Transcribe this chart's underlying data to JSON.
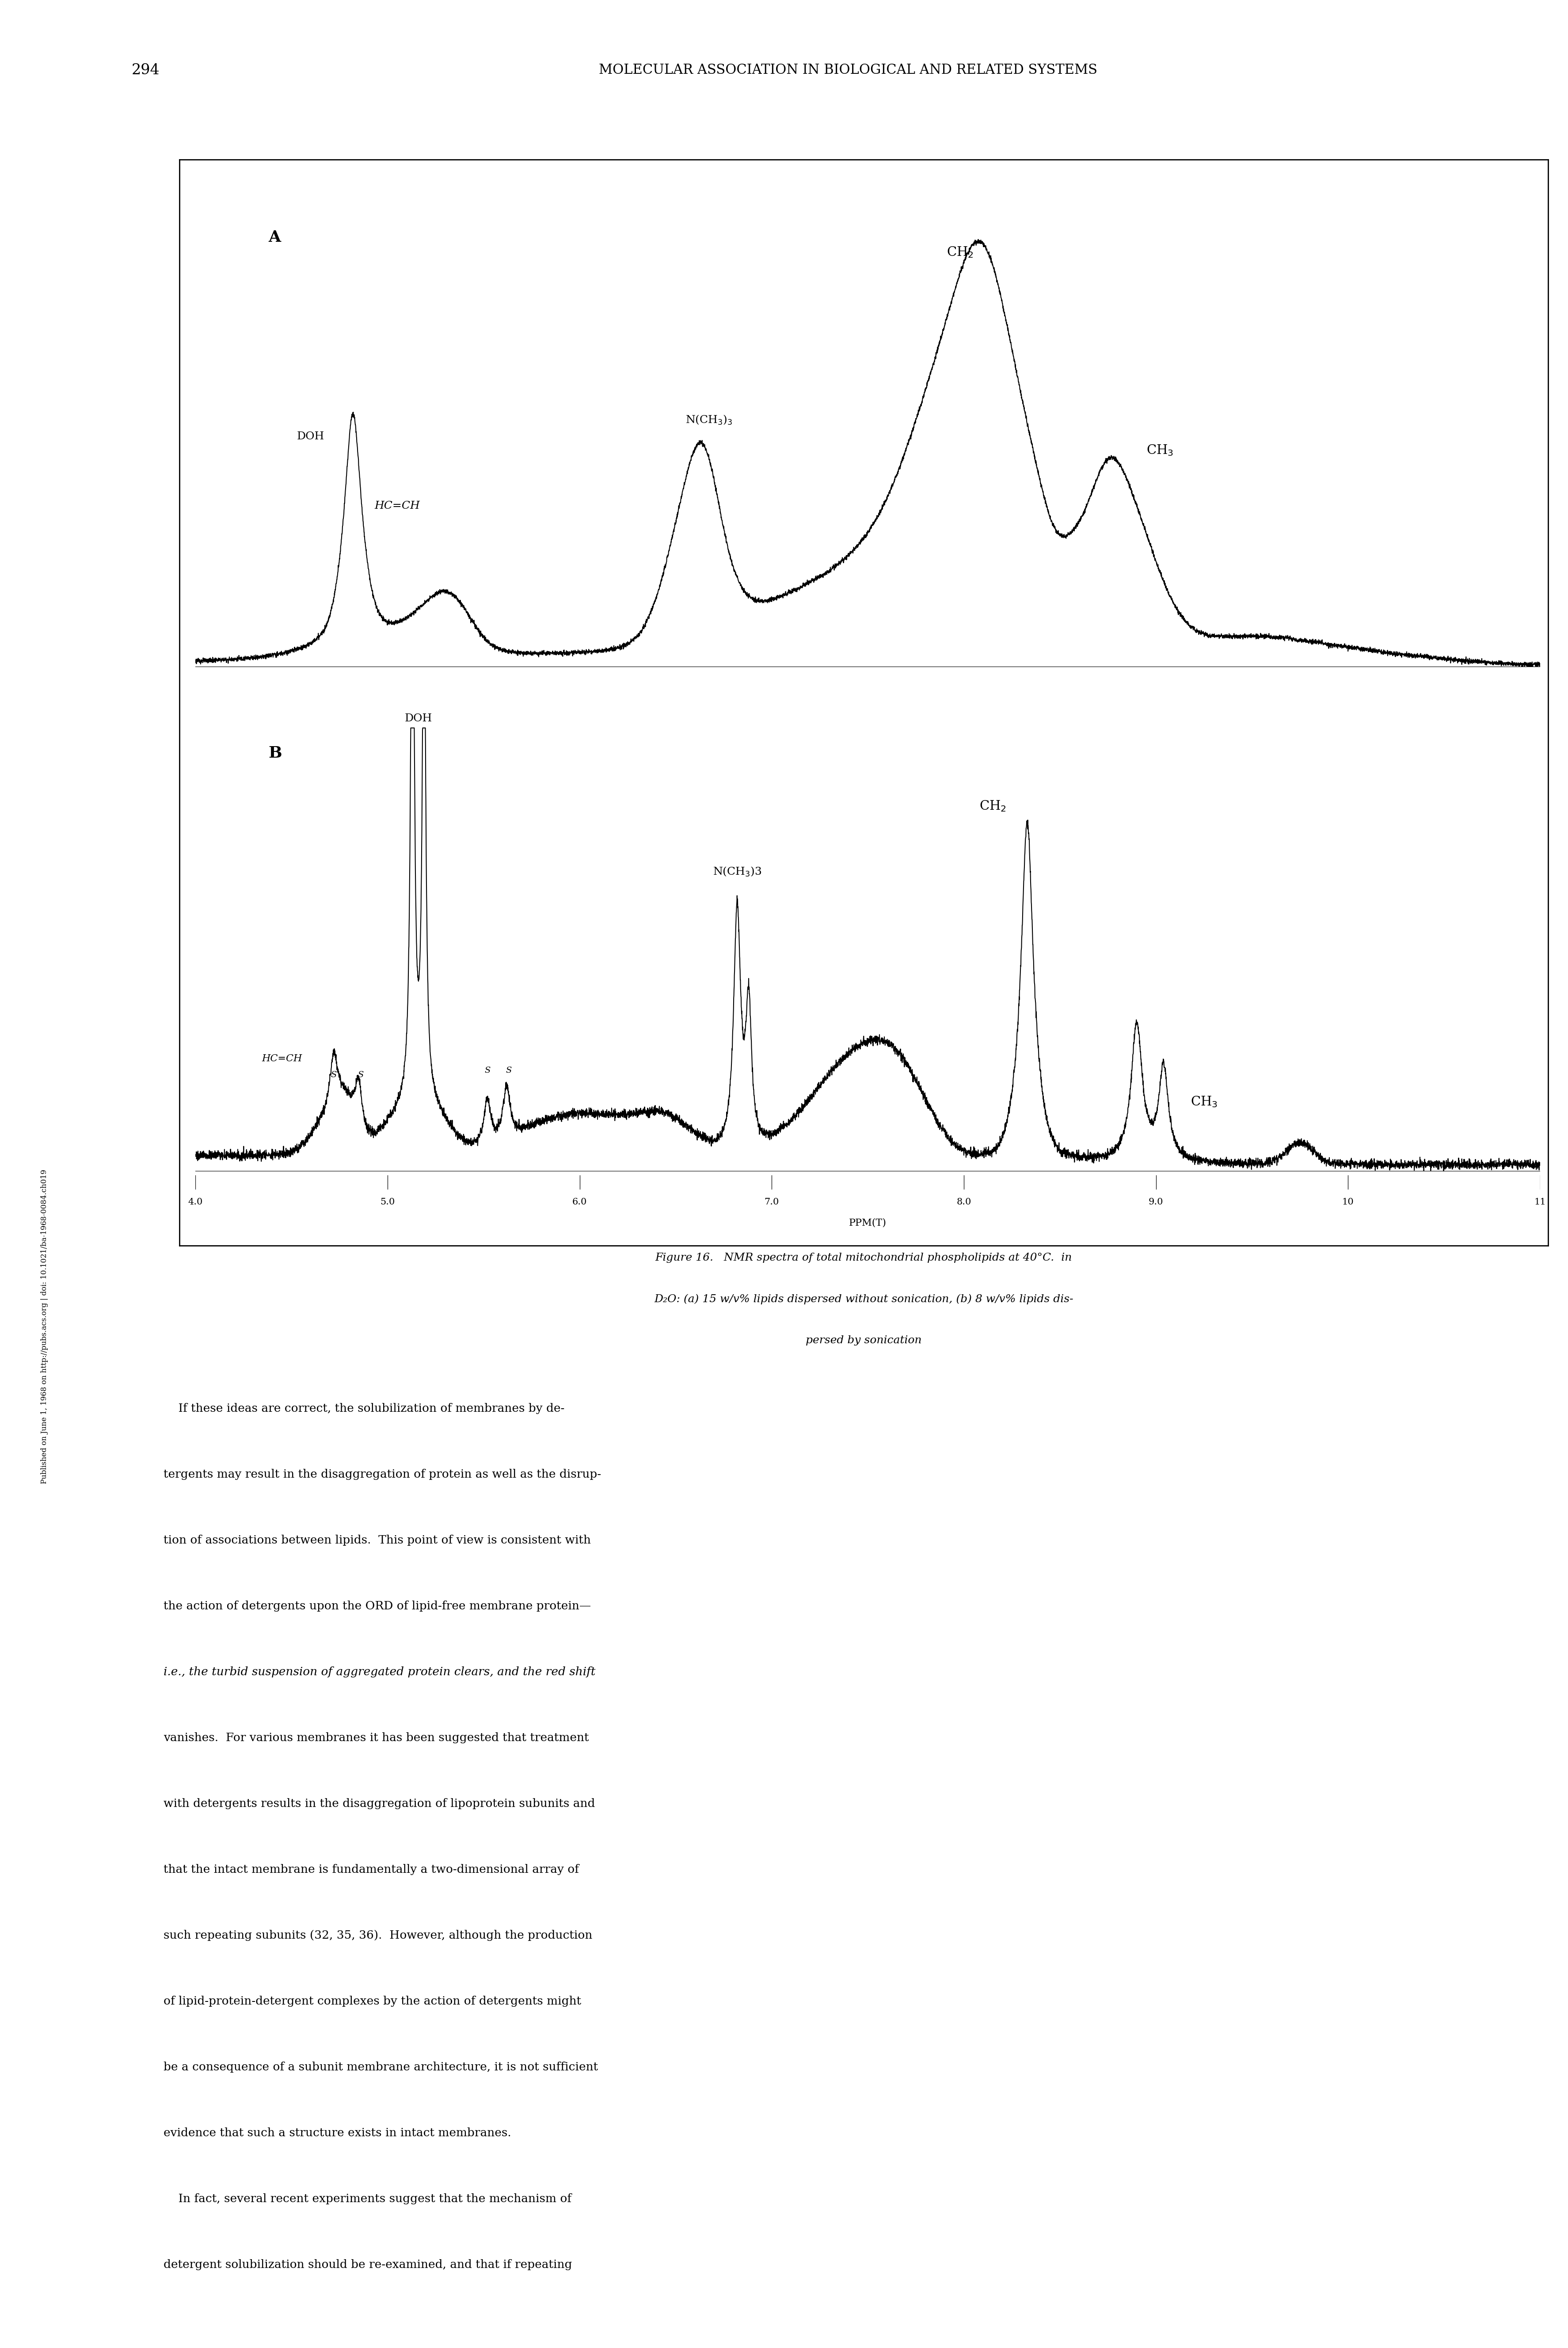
{
  "page_number": "294",
  "page_header_center": "MOLECULAR ASSOCIATION IN BIOLOGICAL AND RELATED SYSTEMS",
  "sidebar_text": "Published on June 1, 1968 on http://pubs.acs.org | doi: 10.1021/ba-1968-0084.ch019",
  "figure_caption_lines": [
    "Figure 16.   NMR spectra of total mitochondrial phospholipids at 40°C.  in",
    "D₂O: (a) 15 w/v% lipids dispersed without sonication, (b) 8 w/v% lipids dis-",
    "persed by sonication"
  ],
  "body_text": [
    "    If these ideas are correct, the solubilization of membranes by de-",
    "tergents may result in the disaggregation of protein as well as the disrup-",
    "tion of associations between lipids.  This point of view is consistent with",
    "the action of detergents upon the ORD of lipid-free membrane protein—",
    "i.e., the turbid suspension of aggregated protein clears, and the red shift",
    "vanishes.  For various membranes it has been suggested that treatment",
    "with detergents results in the disaggregation of lipoprotein subunits and",
    "that the intact membrane is fundamentally a two-dimensional array of",
    "such repeating subunits (32, 35, 36).  However, although the production",
    "of lipid-protein-detergent complexes by the action of detergents might",
    "be a consequence of a subunit membrane architecture, it is not sufficient",
    "evidence that such a structure exists in intact membranes.",
    "    In fact, several recent experiments suggest that the mechanism of",
    "detergent solubilization should be re-examined, and that if repeating"
  ],
  "ppm_min": 4.0,
  "ppm_max": 11.0,
  "tick_positions": [
    4.0,
    5.0,
    6.0,
    7.0,
    8.0,
    9.0,
    10.0,
    11.0
  ],
  "tick_labels": [
    "4.0",
    "5.0",
    "6.0",
    "7.0",
    "8.0",
    "9.0",
    "10",
    "11"
  ],
  "ppm_label": "PPM(T)",
  "panel_A_label": "A",
  "panel_B_label": "B",
  "background_color": "#ffffff",
  "font_size_header": 22,
  "font_size_body": 19,
  "font_size_caption": 18,
  "font_size_annotations": 18,
  "font_size_panel_label": 26,
  "font_size_tick": 15,
  "font_size_sidebar": 12
}
